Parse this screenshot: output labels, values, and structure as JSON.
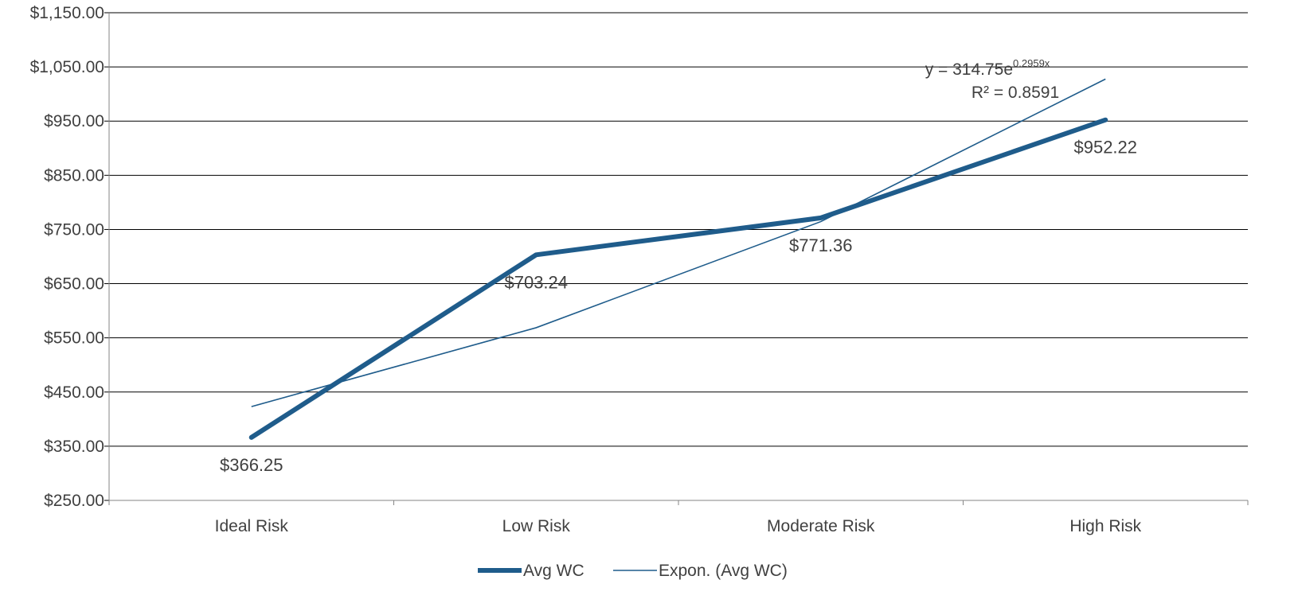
{
  "chart_data": {
    "type": "line",
    "categories": [
      "Ideal Risk",
      "Low Risk",
      "Moderate Risk",
      "High Risk"
    ],
    "series": [
      {
        "name": "Avg WC",
        "values": [
          366.25,
          703.24,
          771.36,
          952.22
        ],
        "data_labels": [
          "$366.25",
          "$703.24",
          "$771.36",
          "$952.22"
        ],
        "color": "#1f5c8b"
      },
      {
        "name": "Expon. (Avg WC)",
        "values": [
          423.1,
          568.7,
          764.5,
          1027.6
        ],
        "color": "#1f5c8b",
        "trendline": true
      }
    ],
    "y_ticks": [
      "$250.00",
      "$350.00",
      "$450.00",
      "$550.00",
      "$650.00",
      "$750.00",
      "$850.00",
      "$950.00",
      "$1,050.00",
      "$1,150.00"
    ],
    "ylim": [
      250,
      1150
    ],
    "y_tick_step": 100,
    "grid": true,
    "legend": "bottom-center",
    "annotations": {
      "equation_prefix": "y = 314.75e",
      "equation_exponent": "0.2959x",
      "r_squared": "R² = 0.8591"
    },
    "title": "",
    "xlabel": "",
    "ylabel": ""
  }
}
